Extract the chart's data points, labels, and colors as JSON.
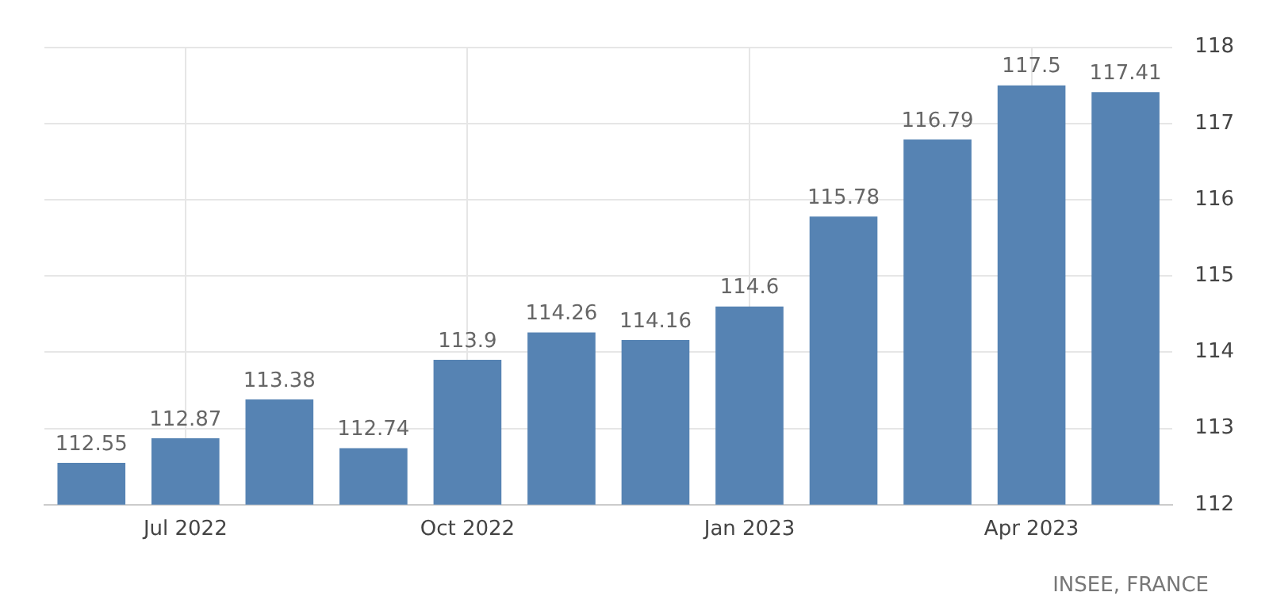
{
  "chart_data": {
    "type": "bar",
    "categories": [
      null,
      "Jul 2022",
      null,
      null,
      "Oct 2022",
      null,
      null,
      "Jan 2023",
      null,
      null,
      "Apr 2023",
      null
    ],
    "values": [
      112.55,
      112.87,
      113.38,
      112.74,
      113.9,
      114.26,
      114.16,
      114.6,
      115.78,
      116.79,
      117.5,
      117.41
    ],
    "color": "#5683b3",
    "ylim": [
      112,
      118
    ],
    "yticks": [
      112,
      113,
      114,
      115,
      116,
      117,
      118
    ],
    "grid": true,
    "data_labels": true,
    "legend": false,
    "annotations": [
      "INSEE, FRANCE"
    ]
  }
}
